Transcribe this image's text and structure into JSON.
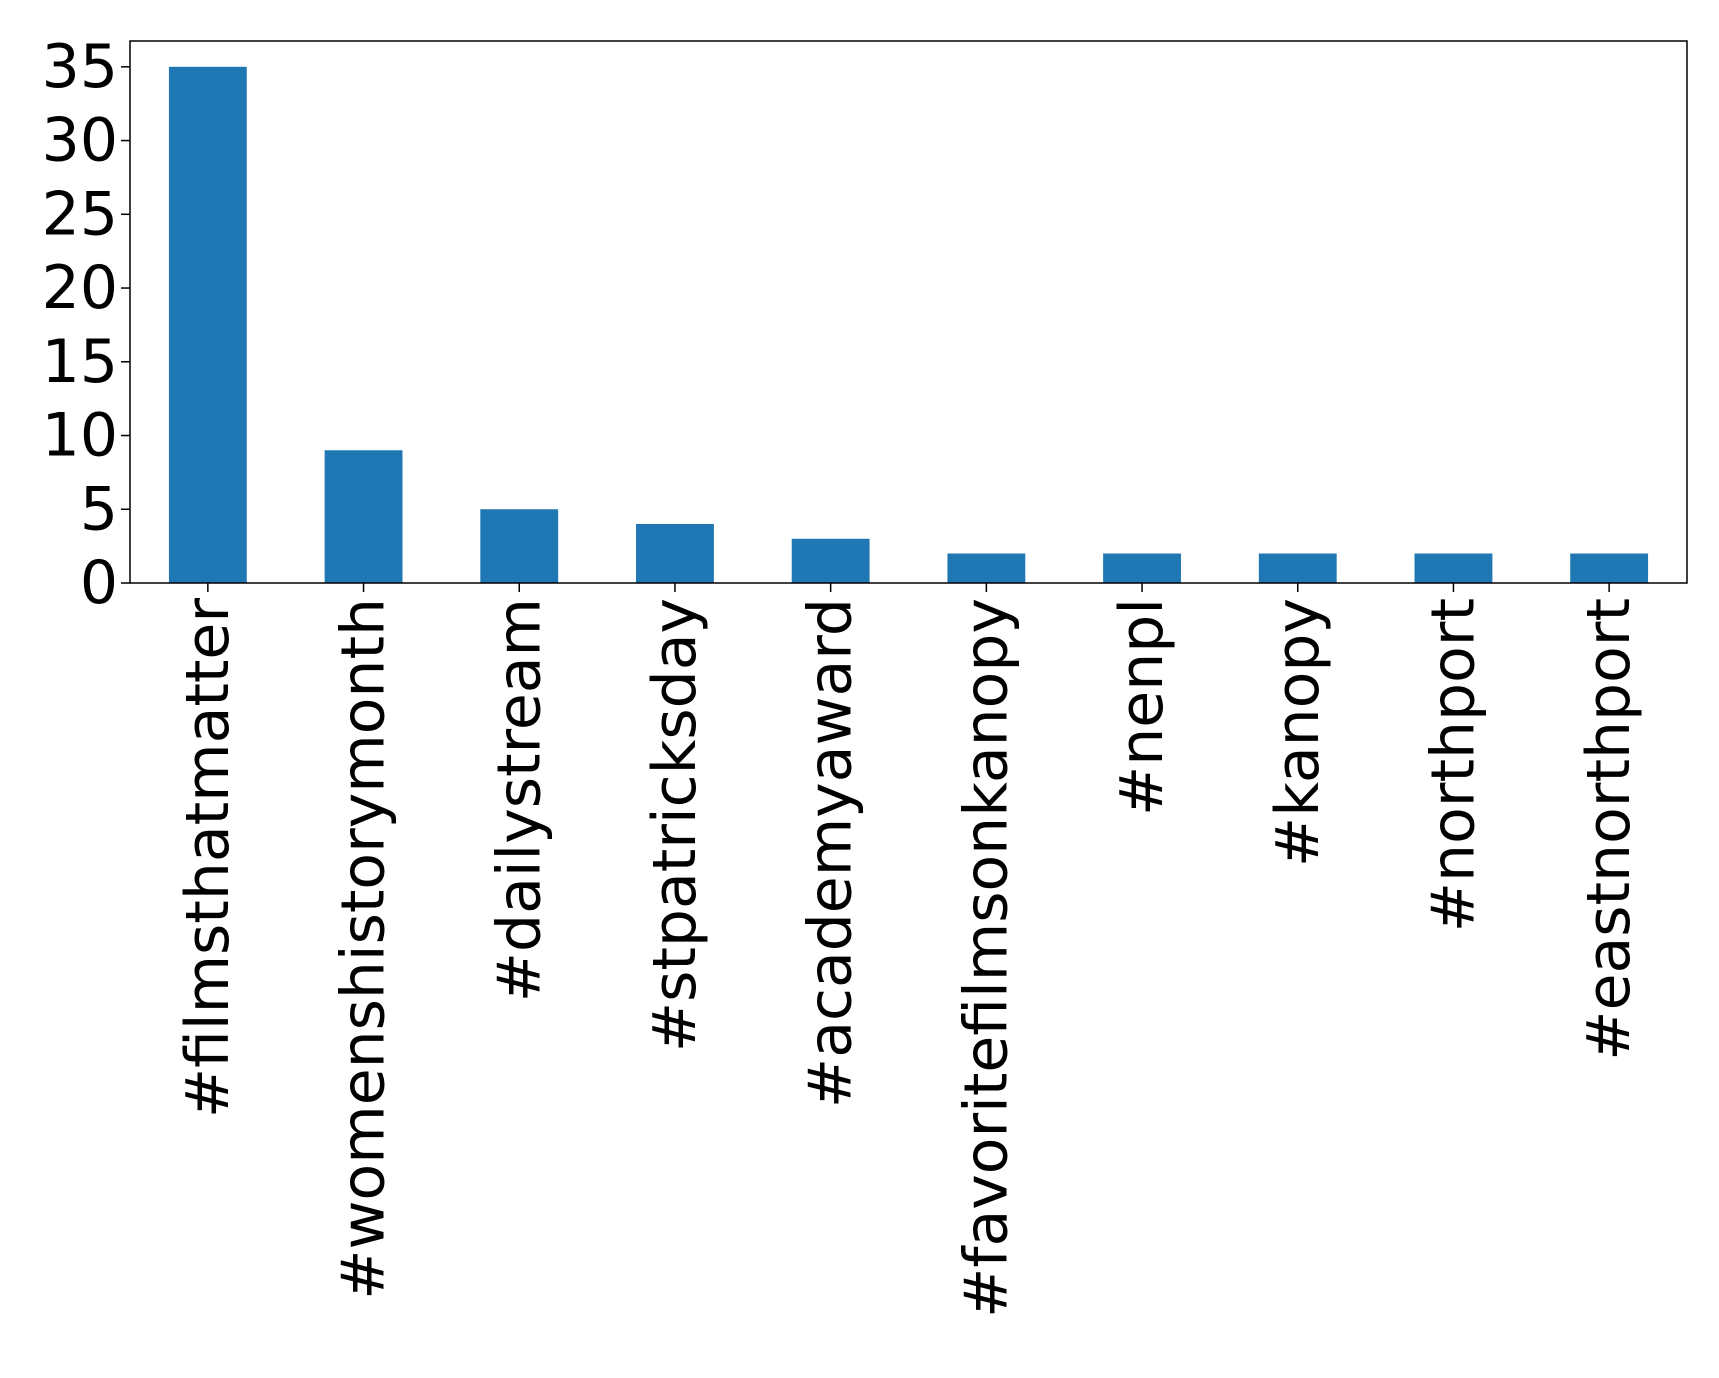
{
  "chart_data": {
    "type": "bar",
    "title": "",
    "xlabel": "",
    "ylabel": "",
    "categories": [
      "#filmsthatmatter",
      "#womenshistorymonth",
      "#dailystream",
      "#stpatricksday",
      "#academyaward",
      "#favoritefilmsonkanopy",
      "#nenpl",
      "#kanopy",
      "#northport",
      "#eastnorthport"
    ],
    "values": [
      35,
      9,
      5,
      4,
      3,
      2,
      2,
      2,
      2,
      2
    ],
    "ylim": [
      0,
      36.75
    ],
    "yticks": [
      0,
      5,
      10,
      15,
      20,
      25,
      30,
      35
    ],
    "grid": false,
    "legend": "none",
    "bar_color": "#1f77b4",
    "axis_color": "#000000"
  }
}
